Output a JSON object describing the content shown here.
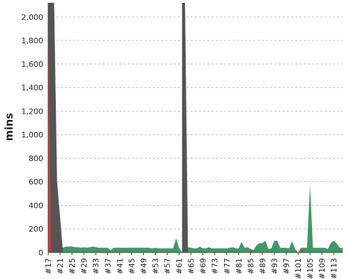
{
  "chart_data": {
    "type": "area",
    "title": "",
    "xlabel": "",
    "ylabel": "mins",
    "ylim": [
      0,
      2120
    ],
    "y_ticks": [
      0,
      200,
      400,
      600,
      800,
      1000,
      1200,
      1400,
      1600,
      1800,
      2000
    ],
    "y_tick_labels": [
      "0",
      "200",
      "400",
      "600",
      "800",
      "1,000",
      "1,200",
      "1,400",
      "1,600",
      "1,800",
      "2,000"
    ],
    "x_start_build": 17,
    "x_end_build": 116,
    "x_tick_builds": [
      17,
      21,
      25,
      29,
      33,
      37,
      41,
      45,
      49,
      53,
      57,
      61,
      65,
      69,
      73,
      77,
      81,
      85,
      89,
      93,
      97,
      101,
      105,
      109,
      113
    ],
    "x_tick_labels": [
      "#17",
      "#21",
      "#25",
      "#29",
      "#33",
      "#37",
      "#41",
      "#45",
      "#49",
      "#53",
      "#57",
      "#61",
      "#65",
      "#69",
      "#73",
      "#77",
      "#81",
      "#85",
      "#89",
      "#93",
      "#97",
      "#101",
      "#105",
      "#109",
      "#113"
    ],
    "grid": true,
    "legend": "none",
    "colors": {
      "success": "#3d9a66",
      "failure": "#cc3b3b",
      "unstable": "#555555",
      "grid": "#bfbfbf",
      "axis": "#444444"
    },
    "series": [
      {
        "status": "success",
        "x": [
          17,
          18,
          19,
          20,
          21,
          22,
          23,
          24,
          25,
          26,
          27,
          28,
          29,
          30,
          31,
          32,
          33,
          34,
          35,
          36,
          37,
          38,
          39,
          40,
          41,
          42,
          43,
          44,
          45,
          46,
          47,
          48,
          49,
          50,
          51,
          52,
          53,
          54,
          55,
          56,
          57,
          58,
          59,
          60,
          61,
          62,
          63,
          64,
          65,
          66,
          67,
          68,
          69,
          70,
          71,
          72,
          73,
          74,
          75,
          76,
          77,
          78,
          79,
          80,
          81,
          82,
          83,
          84,
          85,
          86,
          87,
          88,
          89,
          90,
          91,
          92,
          93,
          94,
          95,
          96,
          97,
          98,
          99,
          100,
          101,
          102,
          103,
          104,
          105,
          106,
          107,
          108,
          109,
          110,
          111,
          112,
          113,
          114,
          115,
          116
        ],
        "values": [
          0,
          0,
          0,
          0,
          45,
          40,
          50,
          50,
          50,
          45,
          45,
          40,
          45,
          40,
          45,
          50,
          45,
          40,
          40,
          40,
          40,
          20,
          40,
          40,
          40,
          40,
          40,
          40,
          40,
          40,
          40,
          40,
          40,
          40,
          40,
          35,
          40,
          35,
          35,
          35,
          35,
          35,
          35,
          120,
          40,
          0,
          0,
          45,
          40,
          35,
          35,
          50,
          35,
          35,
          45,
          35,
          35,
          35,
          35,
          35,
          35,
          40,
          45,
          35,
          35,
          90,
          40,
          45,
          30,
          20,
          60,
          80,
          80,
          100,
          30,
          35,
          100,
          100,
          40,
          40,
          40,
          35,
          95,
          30,
          0,
          40,
          40,
          40,
          570,
          40,
          40,
          40,
          40,
          40,
          30,
          80,
          100,
          75,
          40,
          40
        ]
      },
      {
        "status": "unstable",
        "x": [
          17,
          18,
          19,
          20,
          21,
          22,
          62,
          63,
          64
        ],
        "values": [
          2120,
          2120,
          2120,
          600,
          300,
          0,
          2120,
          2120,
          0
        ]
      },
      {
        "status": "failure",
        "x": [
          17,
          18,
          85,
          86,
          102,
          103
        ],
        "values": [
          2120,
          0,
          30,
          0,
          40,
          0
        ]
      }
    ]
  }
}
